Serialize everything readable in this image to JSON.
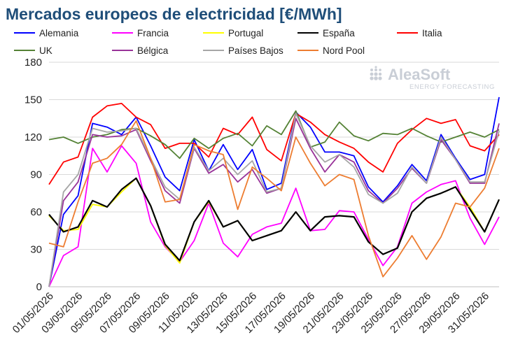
{
  "chart_data": {
    "type": "line",
    "title": "Mercados europeos de electricidad [€/MWh]",
    "xlabel": "",
    "ylabel": "",
    "ylim": [
      0,
      180
    ],
    "yticks": [
      0,
      30,
      60,
      90,
      120,
      150,
      180
    ],
    "grid": "horizontal",
    "legend_position": "top",
    "x": [
      "01/05/2026",
      "02/05/2026",
      "03/05/2026",
      "04/05/2026",
      "05/05/2026",
      "06/05/2026",
      "07/05/2026",
      "08/05/2026",
      "09/05/2026",
      "10/05/2026",
      "11/05/2026",
      "12/05/2026",
      "13/05/2026",
      "14/05/2026",
      "15/05/2026",
      "16/05/2026",
      "17/05/2026",
      "18/05/2026",
      "19/05/2026",
      "20/05/2026",
      "21/05/2026",
      "22/05/2026",
      "23/05/2026",
      "24/05/2026",
      "25/05/2026",
      "26/05/2026",
      "27/05/2026",
      "28/05/2026",
      "29/05/2026",
      "30/05/2026",
      "31/05/2026",
      "01/06/2026"
    ],
    "xtick_labels": [
      "01/05/2026",
      "03/05/2026",
      "05/05/2026",
      "07/05/2026",
      "09/05/2026",
      "11/05/2026",
      "13/05/2026",
      "15/05/2026",
      "17/05/2026",
      "19/05/2026",
      "21/05/2026",
      "23/05/2026",
      "25/05/2026",
      "27/05/2026",
      "29/05/2026",
      "31/05/2026"
    ],
    "series": [
      {
        "name": "Alemania",
        "color": "#0000ff",
        "values": [
          0,
          58,
          73,
          131,
          128,
          122,
          136,
          113,
          88,
          77,
          118,
          93,
          114,
          94,
          110,
          78,
          83,
          140,
          128,
          108,
          108,
          105,
          80,
          68,
          81,
          98,
          85,
          122,
          103,
          86,
          90,
          152
        ]
      },
      {
        "name": "Francia",
        "color": "#ff00ff",
        "values": [
          0,
          25,
          32,
          111,
          92,
          113,
          99,
          52,
          32,
          20,
          37,
          67,
          35,
          24,
          42,
          48,
          51,
          79,
          45,
          46,
          61,
          60,
          38,
          17,
          32,
          67,
          76,
          82,
          85,
          55,
          34,
          56
        ]
      },
      {
        "name": "Portugal",
        "color": "#ffff00",
        "values": [
          57,
          45,
          46,
          66,
          64,
          76,
          87,
          65,
          33,
          19,
          52,
          68,
          48,
          53,
          37,
          41,
          45,
          60,
          45,
          56,
          57,
          56,
          36,
          26,
          31,
          60,
          71,
          75,
          80,
          64,
          44,
          70
        ]
      },
      {
        "name": "España",
        "color": "#000000",
        "values": [
          58,
          44,
          48,
          69,
          64,
          78,
          87,
          65,
          34,
          21,
          52,
          69,
          48,
          53,
          37,
          41,
          45,
          60,
          45,
          56,
          57,
          56,
          36,
          26,
          31,
          60,
          71,
          75,
          80,
          62,
          44,
          70
        ]
      },
      {
        "name": "Italia",
        "color": "#ff0000",
        "values": [
          82,
          100,
          104,
          136,
          145,
          147,
          136,
          130,
          111,
          115,
          115,
          104,
          127,
          122,
          136,
          110,
          101,
          139,
          132,
          122,
          116,
          111,
          100,
          92,
          115,
          126,
          135,
          131,
          134,
          113,
          109,
          122
        ]
      },
      {
        "name": "UK",
        "color": "#548235",
        "values": [
          118,
          120,
          115,
          120,
          122,
          126,
          127,
          121,
          114,
          103,
          119,
          111,
          119,
          123,
          113,
          129,
          122,
          141,
          112,
          116,
          132,
          121,
          117,
          123,
          122,
          127,
          121,
          116,
          120,
          124,
          120,
          126
        ]
      },
      {
        "name": "Bélgica",
        "color": "#993399",
        "values": [
          0,
          69,
          84,
          122,
          120,
          121,
          126,
          101,
          77,
          67,
          111,
          91,
          98,
          84,
          94,
          75,
          79,
          135,
          111,
          92,
          106,
          100,
          77,
          67,
          79,
          95,
          83,
          118,
          102,
          83,
          83,
          131
        ]
      },
      {
        "name": "Países Bajos",
        "color": "#a6a6a6",
        "values": [
          0,
          76,
          90,
          127,
          124,
          125,
          127,
          103,
          80,
          70,
          112,
          93,
          103,
          90,
          101,
          76,
          79,
          139,
          113,
          100,
          106,
          96,
          74,
          67,
          75,
          96,
          83,
          120,
          102,
          84,
          84,
          125
        ]
      },
      {
        "name": "Nord Pool",
        "color": "#ed7d31",
        "values": [
          35,
          32,
          68,
          99,
          103,
          114,
          133,
          103,
          68,
          70,
          114,
          109,
          106,
          62,
          96,
          87,
          77,
          120,
          99,
          81,
          90,
          86,
          41,
          8,
          23,
          41,
          22,
          40,
          67,
          64,
          79,
          111
        ]
      }
    ]
  },
  "logo": {
    "name": "AleaSoft",
    "tagline": "ENERGY FORECASTING"
  }
}
